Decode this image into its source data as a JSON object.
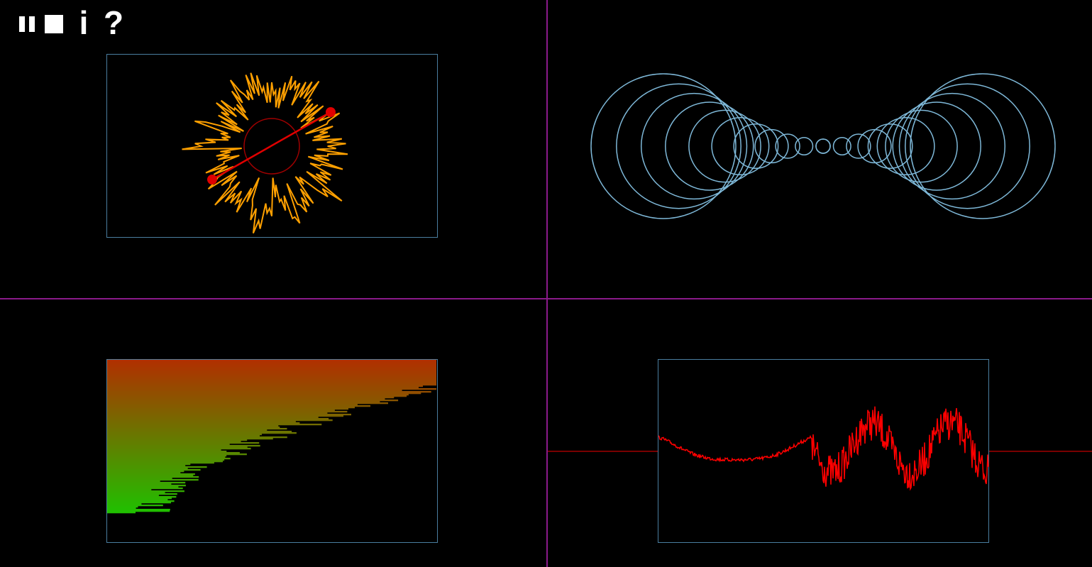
{
  "toolbar": {
    "pause_icon": "pause-icon",
    "stop_icon": "stop-icon",
    "info_label": "i",
    "help_label": "?"
  },
  "colors": {
    "background": "#000000",
    "divider": "#8a1a8a",
    "frame_border": "#4a7ea0",
    "radial_stroke": "#ffa000",
    "accent_red": "#e00000",
    "circle_stroke": "#7eb8d8",
    "bar_top": "#b03000",
    "bar_bottom": "#20c000",
    "signal": "#ff0000"
  },
  "panels": {
    "radial": {
      "name": "radial-spectrum"
    },
    "circles": {
      "name": "circle-tunnel",
      "circle_count": 22
    },
    "bars": {
      "name": "horizontal-bars"
    },
    "waveform": {
      "name": "waveform"
    }
  }
}
